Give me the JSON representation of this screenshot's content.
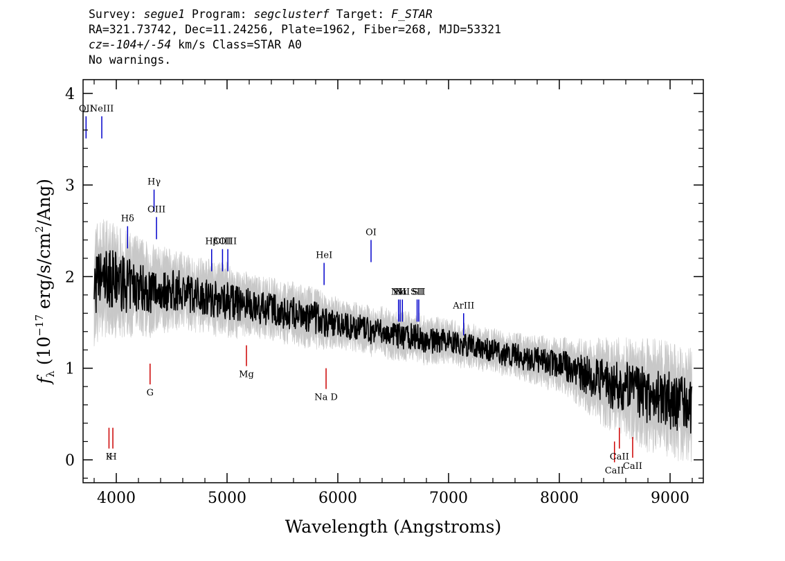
{
  "header": {
    "survey_label": "Survey: ",
    "survey": "segue1",
    "program_label": " Program: ",
    "program": "segclusterf",
    "target_label": " Target: ",
    "target": "F_STAR",
    "line2": "RA=321.73742, Dec=11.24256, Plate=1962, Fiber=268, MJD=53321",
    "cz_label": "cz=",
    "cz_value": "-104+/-54",
    "cz_rest": " km/s Class=STAR A0",
    "line4": "No warnings."
  },
  "chart_data": {
    "type": "line",
    "xlabel": "Wavelength (Angstroms)",
    "ylabel": "f_λ (10^-17 erg/s/cm^2/Ang)",
    "ylabel_parts": {
      "f": "f",
      "lambda": "λ",
      "pre": " (10",
      "exp1": "−17",
      "mid": " erg/s/cm",
      "exp2": "2",
      "post": "/Ang)"
    },
    "xlim": [
      3700,
      9300
    ],
    "ylim": [
      -0.25,
      4.15
    ],
    "grid": false,
    "xticks": [
      4000,
      5000,
      6000,
      7000,
      8000,
      9000
    ],
    "xtick_labels": [
      "4000",
      "5000",
      "6000",
      "7000",
      "8000",
      "9000"
    ],
    "yticks": [
      0,
      1,
      2,
      3,
      4
    ],
    "ytick_labels": [
      "0",
      "1",
      "2",
      "3",
      "4"
    ],
    "series": [
      {
        "role": "flux",
        "color": "#000000",
        "x": [
          3800,
          3900,
          4000,
          4100,
          4200,
          4300,
          4400,
          4500,
          4600,
          4700,
          4800,
          4900,
          5000,
          5100,
          5200,
          5300,
          5400,
          5500,
          5600,
          5700,
          5800,
          5900,
          6000,
          6100,
          6200,
          6300,
          6400,
          6500,
          6600,
          6700,
          6800,
          6900,
          7000,
          7100,
          7200,
          7300,
          7400,
          7500,
          7600,
          7700,
          7800,
          7900,
          8000,
          8100,
          8200,
          8300,
          8400,
          8500,
          8600,
          8700,
          8800,
          8900,
          9000,
          9100,
          9200
        ],
        "values": [
          1.9,
          2.0,
          1.95,
          1.9,
          1.9,
          1.85,
          1.85,
          1.85,
          1.85,
          1.8,
          1.8,
          1.75,
          1.75,
          1.7,
          1.7,
          1.65,
          1.65,
          1.6,
          1.6,
          1.55,
          1.55,
          1.5,
          1.5,
          1.45,
          1.45,
          1.4,
          1.4,
          1.35,
          1.35,
          1.35,
          1.3,
          1.3,
          1.3,
          1.25,
          1.25,
          1.2,
          1.2,
          1.15,
          1.15,
          1.1,
          1.1,
          1.05,
          1.05,
          1.0,
          0.95,
          0.9,
          0.85,
          0.8,
          0.8,
          0.75,
          0.7,
          0.7,
          0.65,
          0.6,
          0.6
        ]
      },
      {
        "role": "error",
        "color": "#c8c8c8",
        "x": [
          3800,
          4000,
          4200,
          4400,
          4600,
          4800,
          5000,
          5200,
          5400,
          5600,
          5800,
          6000,
          6200,
          6400,
          6600,
          6800,
          7000,
          7200,
          7400,
          7600,
          7800,
          8000,
          8200,
          8400,
          8600,
          8800,
          9000,
          9200
        ],
        "values": [
          0.5,
          0.45,
          0.4,
          0.35,
          0.3,
          0.3,
          0.3,
          0.25,
          0.25,
          0.25,
          0.25,
          0.2,
          0.2,
          0.2,
          0.2,
          0.2,
          0.18,
          0.18,
          0.18,
          0.18,
          0.2,
          0.22,
          0.28,
          0.35,
          0.4,
          0.45,
          0.45,
          0.45
        ]
      }
    ],
    "emission_lines": [
      {
        "label": "OII",
        "x": 3727,
        "y": 3.75,
        "color": "#0000cc"
      },
      {
        "label": "NeIII",
        "x": 3869,
        "y": 3.75,
        "color": "#0000cc"
      },
      {
        "label": "Hδ",
        "x": 4102,
        "y": 2.55,
        "color": "#0000cc"
      },
      {
        "label": "Hγ",
        "x": 4341,
        "y": 2.95,
        "color": "#0000cc"
      },
      {
        "label": "OIII",
        "x": 4363,
        "y": 2.65,
        "color": "#0000cc"
      },
      {
        "label": "Hβ",
        "x": 4861,
        "y": 2.3,
        "color": "#0000cc"
      },
      {
        "label": "OIII",
        "x": 4959,
        "y": 2.3,
        "color": "#0000cc"
      },
      {
        "label": "OIII",
        "x": 5007,
        "y": 2.3,
        "color": "#0000cc"
      },
      {
        "label": "HeI",
        "x": 5876,
        "y": 2.15,
        "color": "#0000cc"
      },
      {
        "label": "OI",
        "x": 6300,
        "y": 2.4,
        "color": "#0000cc"
      },
      {
        "label": "NII",
        "x": 6548,
        "y": 1.75,
        "color": "#0000cc"
      },
      {
        "label": "Hα",
        "x": 6563,
        "y": 1.75,
        "color": "#0000cc"
      },
      {
        "label": "NII",
        "x": 6583,
        "y": 1.75,
        "color": "#0000cc"
      },
      {
        "label": "SII",
        "x": 6716,
        "y": 1.75,
        "color": "#0000cc"
      },
      {
        "label": "SII",
        "x": 6731,
        "y": 1.75,
        "color": "#0000cc"
      },
      {
        "label": "ArIII",
        "x": 7136,
        "y": 1.6,
        "color": "#0000cc"
      }
    ],
    "absorption_lines": [
      {
        "label": "K",
        "x": 3934,
        "y": 0.35,
        "color": "#cc0000"
      },
      {
        "label": "H",
        "x": 3969,
        "y": 0.35,
        "color": "#cc0000"
      },
      {
        "label": "G",
        "x": 4305,
        "y": 1.05,
        "color": "#cc0000"
      },
      {
        "label": "Mg",
        "x": 5175,
        "y": 1.25,
        "color": "#cc0000"
      },
      {
        "label": "Na D",
        "x": 5894,
        "y": 1.0,
        "color": "#cc0000"
      },
      {
        "label": "CaII",
        "x": 8498,
        "y": 0.2,
        "color": "#cc0000"
      },
      {
        "label": "CaII",
        "x": 8542,
        "y": 0.35,
        "color": "#cc0000"
      },
      {
        "label": "CaII",
        "x": 8662,
        "y": 0.25,
        "color": "#cc0000"
      }
    ]
  }
}
